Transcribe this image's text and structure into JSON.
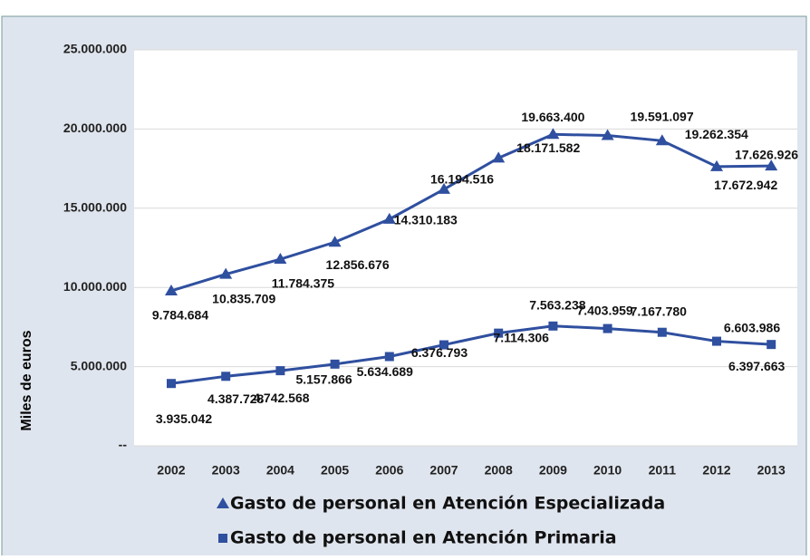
{
  "chart_data": {
    "type": "line",
    "y_axis_label": "Miles de euros",
    "categories": [
      "2002",
      "2003",
      "2004",
      "2005",
      "2006",
      "2007",
      "2008",
      "2009",
      "2010",
      "2011",
      "2012",
      "2013"
    ],
    "series": [
      {
        "name": "Gasto de personal en Atención Especializada",
        "color": "#2f4f9f",
        "marker": "triangle",
        "values": [
          9784684,
          10835709,
          11784375,
          12856676,
          14310183,
          16194516,
          18171582,
          19663400,
          19591097,
          19262354,
          17626926,
          17672942
        ],
        "value_labels": [
          "9.784.684",
          "10.835.709",
          "11.784.375",
          "12.856.676",
          "14.310.183",
          "16.194.516",
          "18.171.582",
          "19.663.400",
          "19.591.097",
          "19.262.354",
          "17.626.926",
          "17.672.942"
        ]
      },
      {
        "name": "Gasto de personal en Atención Primaria",
        "color": "#2f4f9f",
        "marker": "square",
        "values": [
          3935042,
          4387728,
          4742568,
          5157866,
          5634689,
          6376793,
          7114306,
          7563238,
          7403959,
          7167780,
          6603986,
          6397663
        ],
        "value_labels": [
          "3.935.042",
          "4.387.728",
          "4.742.568",
          "5.157.866",
          "5.634.689",
          "6.376.793",
          "7.114.306",
          "7.563.238",
          "7.403.959",
          "7.167.780",
          "6.603.986",
          "6.397.663"
        ]
      }
    ],
    "ylim": [
      0,
      25000000
    ],
    "yticks": [
      {
        "value": 0,
        "label": "--"
      },
      {
        "value": 5000000,
        "label": "5.000.000"
      },
      {
        "value": 10000000,
        "label": "10.000.000"
      },
      {
        "value": 15000000,
        "label": "15.000.000"
      },
      {
        "value": 20000000,
        "label": "20.000.000"
      },
      {
        "value": 25000000,
        "label": "25.000.000"
      }
    ],
    "grid": true,
    "legend": "bottom"
  }
}
